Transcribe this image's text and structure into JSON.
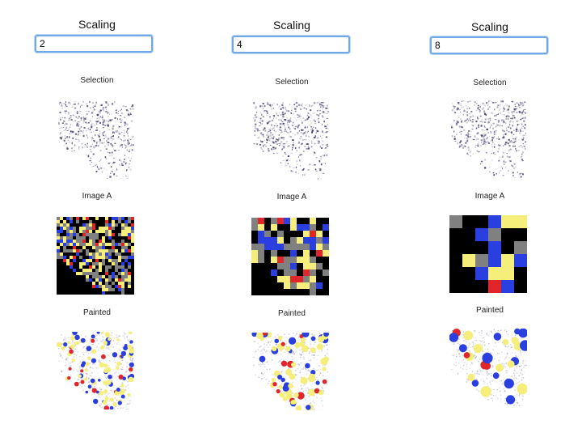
{
  "columns": [
    {
      "scaling_label": "Scaling",
      "scaling_value": "2",
      "selection_label": "Selection",
      "image_a_label": "Image A",
      "painted_label": "Painted"
    },
    {
      "scaling_label": "Scaling",
      "scaling_value": "4",
      "selection_label": "Selection",
      "image_a_label": "Image A",
      "painted_label": "Painted"
    },
    {
      "scaling_label": "Scaling",
      "scaling_value": "8",
      "selection_label": "Selection",
      "image_a_label": "Image A",
      "painted_label": "Painted"
    }
  ],
  "colors": {
    "input_border": "#6fa9e6",
    "grid_black": "#000000",
    "grid_gray": "#808080",
    "grid_yellow": "#f5ee7a",
    "grid_blue": "#2a3fe0",
    "grid_red": "#e0262a",
    "selection_ink": "#3a3468"
  }
}
